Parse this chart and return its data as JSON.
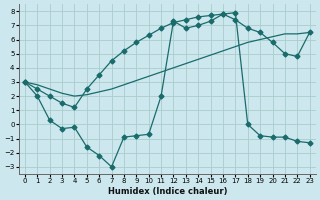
{
  "xlabel": "Humidex (Indice chaleur)",
  "background_color": "#cce8ee",
  "grid_color": "#aacccc",
  "line_color": "#1a6b6b",
  "xlim": [
    -0.5,
    23.5
  ],
  "ylim": [
    -3.5,
    8.5
  ],
  "yticks": [
    -3,
    -2,
    -1,
    0,
    1,
    2,
    3,
    4,
    5,
    6,
    7,
    8
  ],
  "xticks": [
    0,
    1,
    2,
    3,
    4,
    5,
    6,
    7,
    8,
    9,
    10,
    11,
    12,
    13,
    14,
    15,
    16,
    17,
    18,
    19,
    20,
    21,
    22,
    23
  ],
  "line1_x": [
    0,
    1,
    2,
    3,
    4,
    5,
    6,
    7,
    8,
    9,
    10,
    11,
    12,
    13,
    14,
    15,
    16,
    17,
    18,
    19,
    20,
    21,
    22,
    23
  ],
  "line1_y": [
    3.0,
    2.0,
    0.3,
    -0.3,
    -0.2,
    -1.6,
    -2.2,
    -3.0,
    -0.9,
    -0.8,
    -0.7,
    2.0,
    7.3,
    6.8,
    7.0,
    7.3,
    7.8,
    7.9,
    0.0,
    -0.8,
    -0.9,
    -0.9,
    -1.2,
    -1.3
  ],
  "line2_x": [
    0,
    1,
    2,
    3,
    4,
    5,
    6,
    7,
    8,
    9,
    10,
    11,
    12,
    13,
    14,
    15,
    16,
    17,
    18,
    19,
    20,
    21,
    22,
    23
  ],
  "line2_y": [
    3.0,
    2.5,
    2.0,
    1.5,
    1.2,
    2.5,
    3.5,
    4.5,
    5.2,
    5.8,
    6.3,
    6.8,
    7.2,
    7.4,
    7.6,
    7.7,
    7.8,
    7.4,
    6.8,
    6.5,
    5.8,
    5.0,
    4.8,
    6.5
  ],
  "line3_x": [
    0,
    1,
    2,
    3,
    4,
    5,
    6,
    7,
    8,
    9,
    10,
    11,
    12,
    13,
    14,
    15,
    16,
    17,
    18,
    19,
    20,
    21,
    22,
    23
  ],
  "line3_y": [
    3.0,
    2.8,
    2.5,
    2.2,
    2.0,
    2.1,
    2.3,
    2.5,
    2.8,
    3.1,
    3.4,
    3.7,
    4.0,
    4.3,
    4.6,
    4.9,
    5.2,
    5.5,
    5.8,
    6.0,
    6.2,
    6.4,
    6.4,
    6.5
  ]
}
